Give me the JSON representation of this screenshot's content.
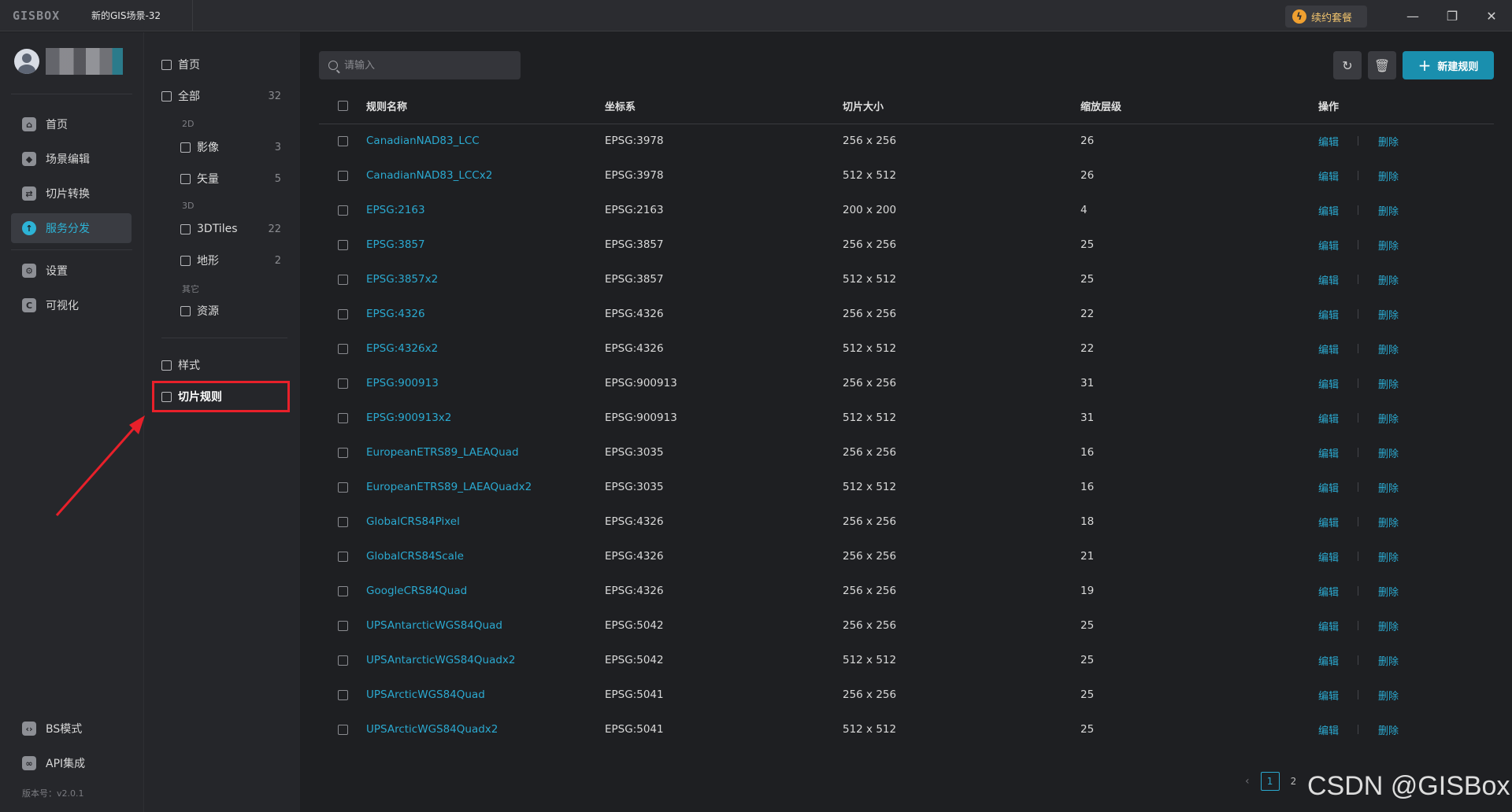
{
  "titlebar": {
    "logo": "GISBOX",
    "scene_tab": "新的GIS场景-32",
    "renew_label": "续约套餐"
  },
  "nav": {
    "items": [
      {
        "label": "首页",
        "icon": "home-icon"
      },
      {
        "label": "场景编辑",
        "icon": "cube-icon"
      },
      {
        "label": "切片转换",
        "icon": "swap-icon"
      },
      {
        "label": "服务分发",
        "icon": "upload-icon"
      },
      {
        "label": "设置",
        "icon": "gear-icon"
      },
      {
        "label": "可视化",
        "icon": "chart-icon"
      },
      {
        "label": "BS模式",
        "icon": "code-icon"
      },
      {
        "label": "API集成",
        "icon": "link-icon"
      }
    ],
    "version": "版本号：v2.0.1"
  },
  "sub": {
    "home": "首页",
    "all": {
      "label": "全部",
      "count": "32"
    },
    "group_2d": "2D",
    "imagery": {
      "label": "影像",
      "count": "3"
    },
    "vector": {
      "label": "矢量",
      "count": "5"
    },
    "group_3d": "3D",
    "tiles3d": {
      "label": "3DTiles",
      "count": "22"
    },
    "terrain": {
      "label": "地形",
      "count": "2"
    },
    "group_other": "其它",
    "resource": {
      "label": "资源"
    },
    "style": "样式",
    "tile_rules": "切片规则"
  },
  "toolbar": {
    "search_placeholder": "请输入",
    "new_label": "新建规则"
  },
  "table": {
    "headers": {
      "name": "规则名称",
      "crs": "坐标系",
      "size": "切片大小",
      "zoom": "缩放层级",
      "ops": "操作"
    },
    "edit_label": "编辑",
    "delete_label": "删除",
    "rows": [
      {
        "name": "CanadianNAD83_LCC",
        "crs": "EPSG:3978",
        "size": "256 x 256",
        "zoom": "26"
      },
      {
        "name": "CanadianNAD83_LCCx2",
        "crs": "EPSG:3978",
        "size": "512 x 512",
        "zoom": "26"
      },
      {
        "name": "EPSG:2163",
        "crs": "EPSG:2163",
        "size": "200 x 200",
        "zoom": "4"
      },
      {
        "name": "EPSG:3857",
        "crs": "EPSG:3857",
        "size": "256 x 256",
        "zoom": "25"
      },
      {
        "name": "EPSG:3857x2",
        "crs": "EPSG:3857",
        "size": "512 x 512",
        "zoom": "25"
      },
      {
        "name": "EPSG:4326",
        "crs": "EPSG:4326",
        "size": "256 x 256",
        "zoom": "22"
      },
      {
        "name": "EPSG:4326x2",
        "crs": "EPSG:4326",
        "size": "512 x 512",
        "zoom": "22"
      },
      {
        "name": "EPSG:900913",
        "crs": "EPSG:900913",
        "size": "256 x 256",
        "zoom": "31"
      },
      {
        "name": "EPSG:900913x2",
        "crs": "EPSG:900913",
        "size": "512 x 512",
        "zoom": "31"
      },
      {
        "name": "EuropeanETRS89_LAEAQuad",
        "crs": "EPSG:3035",
        "size": "256 x 256",
        "zoom": "16"
      },
      {
        "name": "EuropeanETRS89_LAEAQuadx2",
        "crs": "EPSG:3035",
        "size": "512 x 512",
        "zoom": "16"
      },
      {
        "name": "GlobalCRS84Pixel",
        "crs": "EPSG:4326",
        "size": "256 x 256",
        "zoom": "18"
      },
      {
        "name": "GlobalCRS84Scale",
        "crs": "EPSG:4326",
        "size": "256 x 256",
        "zoom": "21"
      },
      {
        "name": "GoogleCRS84Quad",
        "crs": "EPSG:4326",
        "size": "256 x 256",
        "zoom": "19"
      },
      {
        "name": "UPSAntarcticWGS84Quad",
        "crs": "EPSG:5042",
        "size": "256 x 256",
        "zoom": "25"
      },
      {
        "name": "UPSAntarcticWGS84Quadx2",
        "crs": "EPSG:5042",
        "size": "512 x 512",
        "zoom": "25"
      },
      {
        "name": "UPSArcticWGS84Quad",
        "crs": "EPSG:5041",
        "size": "256 x 256",
        "zoom": "25"
      },
      {
        "name": "UPSArcticWGS84Quadx2",
        "crs": "EPSG:5041",
        "size": "512 x 512",
        "zoom": "25"
      }
    ]
  },
  "pager": {
    "current": "1",
    "next": "2"
  },
  "watermark": "CSDN @GISBox",
  "colors": {
    "accent": "#2ba9d0",
    "highlight_box": "#e8202a",
    "primary_button": "#1a8fae"
  }
}
